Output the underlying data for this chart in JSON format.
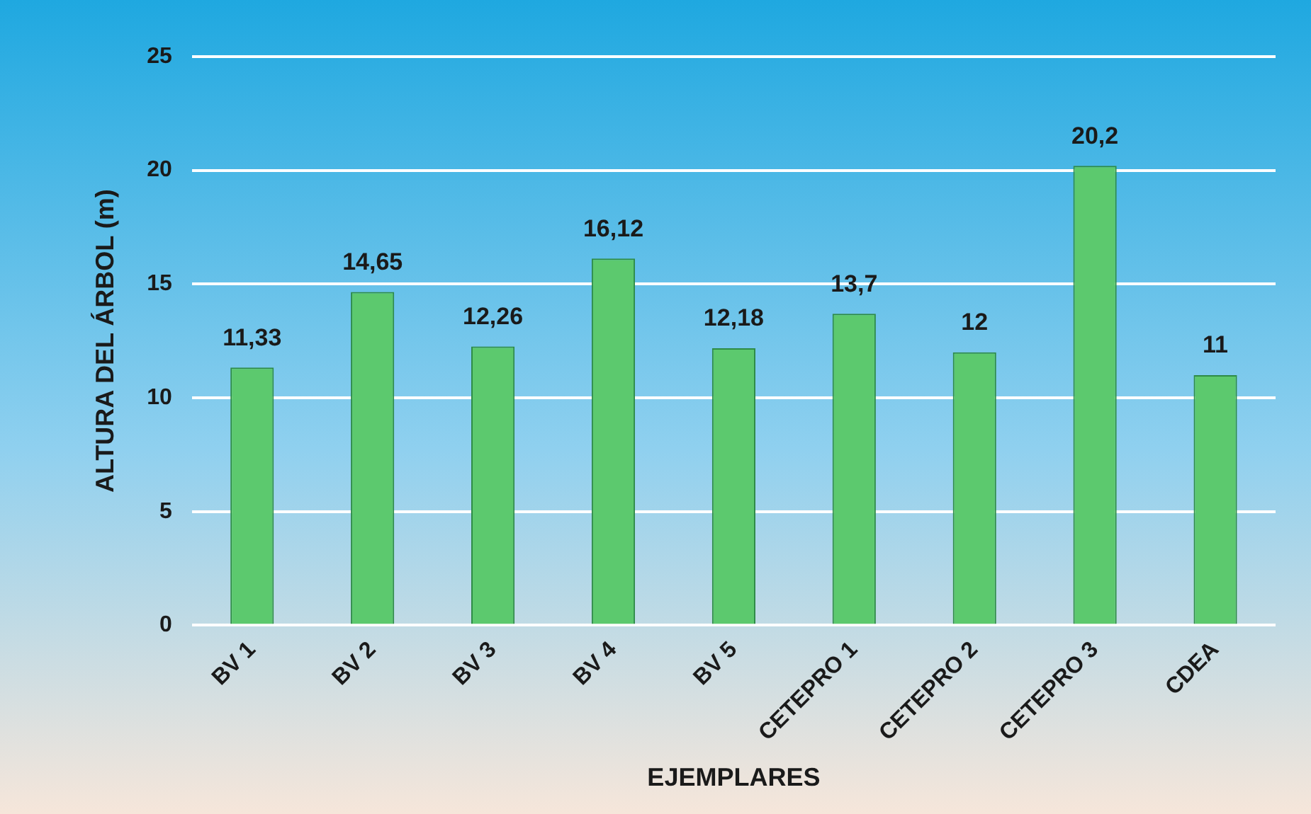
{
  "chart_data": {
    "type": "bar",
    "xlabel": "EJEMPLARES",
    "ylabel": "ALTURA DEL ÁRBOL (m)",
    "categories": [
      "BV 1",
      "BV 2",
      "BV 3",
      "BV 4",
      "BV 5",
      "CETEPRO 1",
      "CETEPRO 2",
      "CETEPRO 3",
      "CDEA"
    ],
    "values": [
      11.33,
      14.65,
      12.26,
      16.12,
      12.18,
      13.7,
      12,
      20.2,
      11
    ],
    "value_labels": [
      "11,33",
      "14,65",
      "12,26",
      "16,12",
      "12,18",
      "13,7",
      "12",
      "20,2",
      "11"
    ],
    "color": "#5cc96e",
    "ylim": [
      0,
      25
    ],
    "yticks": [
      0,
      5,
      10,
      15,
      20,
      25
    ],
    "grid": "y",
    "legend": false
  }
}
